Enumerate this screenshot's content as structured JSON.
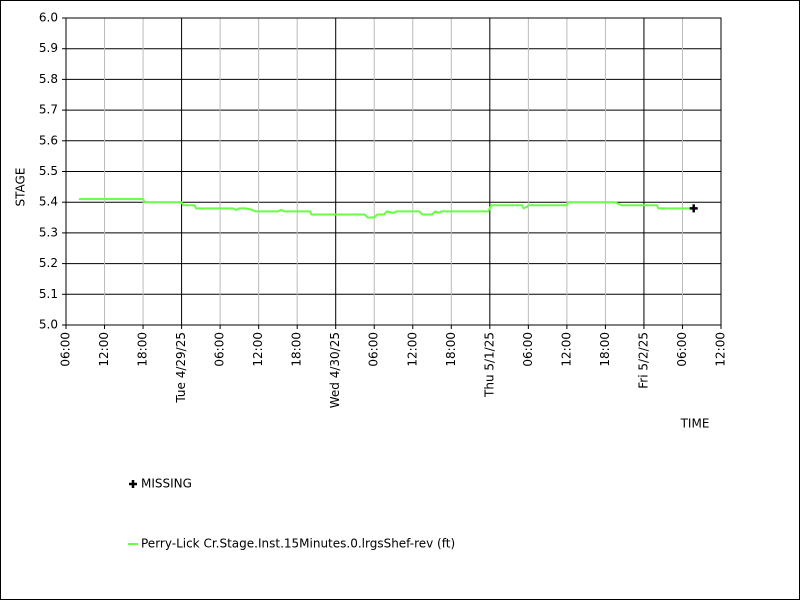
{
  "chart_data": {
    "type": "line",
    "y_label": "STAGE",
    "x_label": "TIME",
    "ylim": [
      5.0,
      6.0
    ],
    "yticks": [
      {
        "value": 5.0,
        "label": "5.0"
      },
      {
        "value": 5.1,
        "label": "5.1"
      },
      {
        "value": 5.2,
        "label": "5.2"
      },
      {
        "value": 5.3,
        "label": "5.3"
      },
      {
        "value": 5.4,
        "label": "5.4"
      },
      {
        "value": 5.5,
        "label": "5.5"
      },
      {
        "value": 5.6,
        "label": "5.6"
      },
      {
        "value": 5.7,
        "label": "5.7"
      },
      {
        "value": 5.8,
        "label": "5.8"
      },
      {
        "value": 5.9,
        "label": "5.9"
      },
      {
        "value": 6.0,
        "label": "6.0"
      }
    ],
    "xlim": [
      "2025-04-28T06:00",
      "2025-05-02T12:00"
    ],
    "xticks": [
      {
        "value": "2025-04-28T06:00",
        "label": "06:00"
      },
      {
        "value": "2025-04-28T12:00",
        "label": "12:00"
      },
      {
        "value": "2025-04-28T18:00",
        "label": "18:00"
      },
      {
        "value": "2025-04-29T00:00",
        "label": "Tue 4/29/25"
      },
      {
        "value": "2025-04-29T06:00",
        "label": "06:00"
      },
      {
        "value": "2025-04-29T12:00",
        "label": "12:00"
      },
      {
        "value": "2025-04-29T18:00",
        "label": "18:00"
      },
      {
        "value": "2025-04-30T00:00",
        "label": "Wed 4/30/25"
      },
      {
        "value": "2025-04-30T06:00",
        "label": "06:00"
      },
      {
        "value": "2025-04-30T12:00",
        "label": "12:00"
      },
      {
        "value": "2025-04-30T18:00",
        "label": "18:00"
      },
      {
        "value": "2025-05-01T00:00",
        "label": "Thu 5/1/25"
      },
      {
        "value": "2025-05-01T06:00",
        "label": "06:00"
      },
      {
        "value": "2025-05-01T12:00",
        "label": "12:00"
      },
      {
        "value": "2025-05-01T18:00",
        "label": "18:00"
      },
      {
        "value": "2025-05-02T00:00",
        "label": "Fri 5/2/25"
      },
      {
        "value": "2025-05-02T06:00",
        "label": "06:00"
      },
      {
        "value": "2025-05-02T12:00",
        "label": "12:00"
      }
    ],
    "grid": true,
    "series": [
      {
        "name": "MISSING",
        "color": "#000000",
        "marker": "plus",
        "x": [
          "2025-05-02T07:45"
        ],
        "values": [
          5.38
        ]
      },
      {
        "name": "Perry-Lick Cr.Stage.Inst.15Minutes.0.lrgsShef-rev (ft)",
        "color": "#66ff44",
        "marker": "line",
        "x": [
          "2025-04-28T08:00",
          "2025-04-28T18:00",
          "2025-04-28T18:15",
          "2025-04-29T00:00",
          "2025-04-29T00:15",
          "2025-04-29T02:00",
          "2025-04-29T02:15",
          "2025-04-29T08:00",
          "2025-04-29T08:30",
          "2025-04-29T09:00",
          "2025-04-29T10:00",
          "2025-04-29T11:00",
          "2025-04-29T11:30",
          "2025-04-29T15:00",
          "2025-04-29T15:30",
          "2025-04-29T16:00",
          "2025-04-29T20:00",
          "2025-04-29T20:15",
          "2025-04-30T04:30",
          "2025-04-30T05:00",
          "2025-04-30T06:00",
          "2025-04-30T06:30",
          "2025-04-30T07:30",
          "2025-04-30T08:00",
          "2025-04-30T09:00",
          "2025-04-30T09:30",
          "2025-04-30T13:00",
          "2025-04-30T13:30",
          "2025-04-30T15:00",
          "2025-04-30T15:30",
          "2025-04-30T16:00",
          "2025-04-30T16:30",
          "2025-04-30T23:45",
          "2025-05-01T00:00",
          "2025-05-01T00:15",
          "2025-05-01T05:00",
          "2025-05-01T05:15",
          "2025-05-01T05:45",
          "2025-05-01T06:00",
          "2025-05-01T12:00",
          "2025-05-01T12:15",
          "2025-05-01T19:30",
          "2025-05-01T20:00",
          "2025-05-01T20:30",
          "2025-05-02T02:00",
          "2025-05-02T02:15",
          "2025-05-02T07:45"
        ],
        "values": [
          5.41,
          5.41,
          5.4,
          5.4,
          5.39,
          5.39,
          5.38,
          5.38,
          5.375,
          5.38,
          5.38,
          5.375,
          5.37,
          5.37,
          5.375,
          5.37,
          5.37,
          5.36,
          5.36,
          5.35,
          5.35,
          5.36,
          5.36,
          5.37,
          5.365,
          5.37,
          5.37,
          5.36,
          5.36,
          5.37,
          5.365,
          5.37,
          5.37,
          5.38,
          5.39,
          5.39,
          5.38,
          5.385,
          5.39,
          5.39,
          5.4,
          5.4,
          5.395,
          5.39,
          5.39,
          5.38,
          5.38
        ]
      }
    ]
  }
}
